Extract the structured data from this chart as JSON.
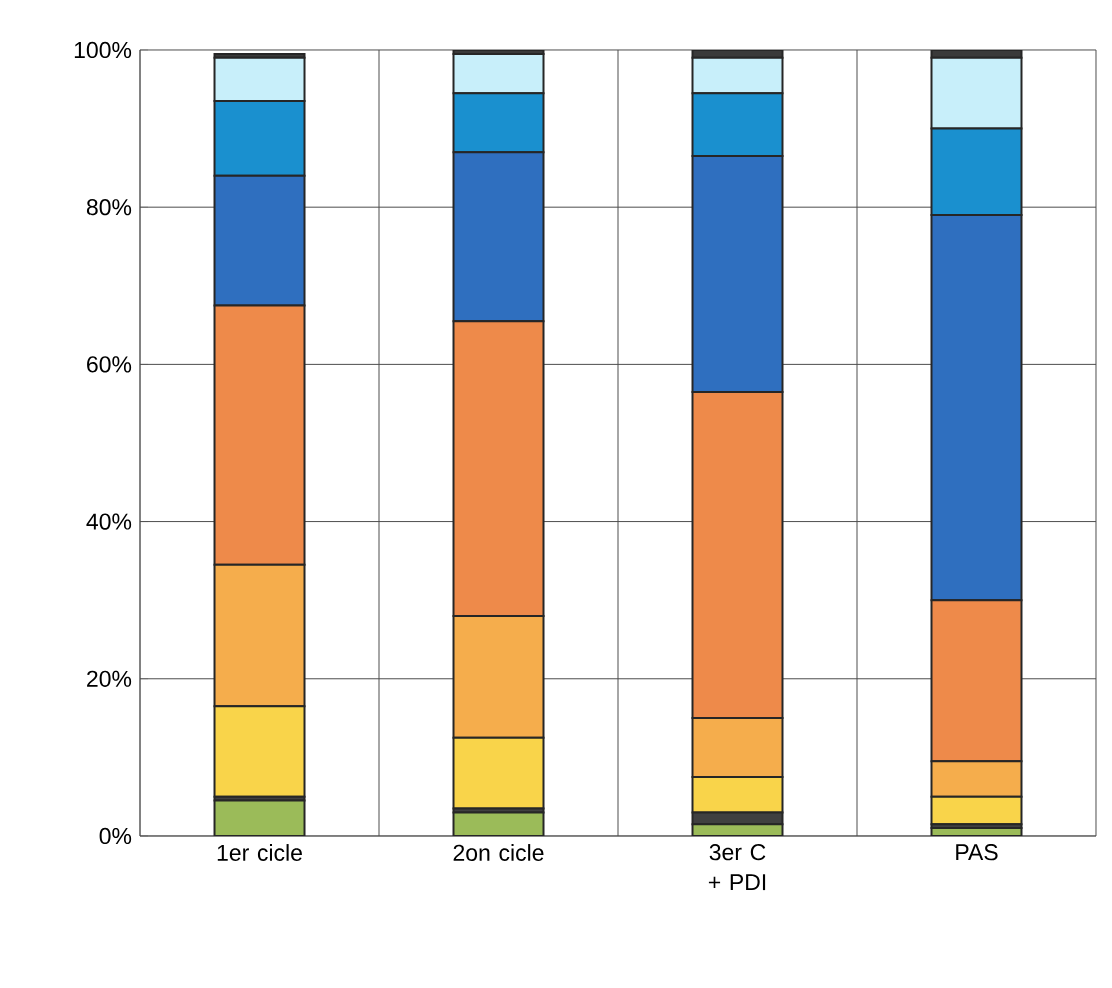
{
  "chart_data": {
    "type": "bar",
    "stacked": true,
    "grid": true,
    "categories": [
      "1er cicle",
      "2on cicle",
      "3er C + PDI",
      "PAS"
    ],
    "series": [
      {
        "color": "#9bbb59",
        "values": [
          4.5,
          3,
          1.5,
          1
        ]
      },
      {
        "color": "#404040",
        "values": [
          0.5,
          0.5,
          1.5,
          0.5
        ]
      },
      {
        "color": "#f9d44a",
        "values": [
          11.5,
          9,
          4.5,
          3.5
        ]
      },
      {
        "color": "#f5ad4c",
        "values": [
          18,
          15.5,
          7.5,
          4.5
        ]
      },
      {
        "color": "#ee8a4a",
        "values": [
          33,
          37.5,
          41.5,
          20.5
        ]
      },
      {
        "color": "#2f6fbf",
        "values": [
          16.5,
          21.5,
          30,
          49
        ]
      },
      {
        "color": "#1a90cf",
        "values": [
          9.5,
          7.5,
          8,
          11
        ]
      },
      {
        "color": "#c8effa",
        "values": [
          5.5,
          5,
          4.5,
          9
        ]
      },
      {
        "color": "#3a3a3a",
        "values": [
          0.5,
          0.5,
          1,
          1
        ]
      }
    ],
    "ylim": [
      0,
      100
    ],
    "yticks": [
      {
        "value": 0,
        "label": "0%"
      },
      {
        "value": 20,
        "label": "20%"
      },
      {
        "value": 40,
        "label": "40%"
      },
      {
        "value": 60,
        "label": "60%"
      },
      {
        "value": 80,
        "label": "80%"
      },
      {
        "value": 100,
        "label": "100%"
      }
    ]
  }
}
